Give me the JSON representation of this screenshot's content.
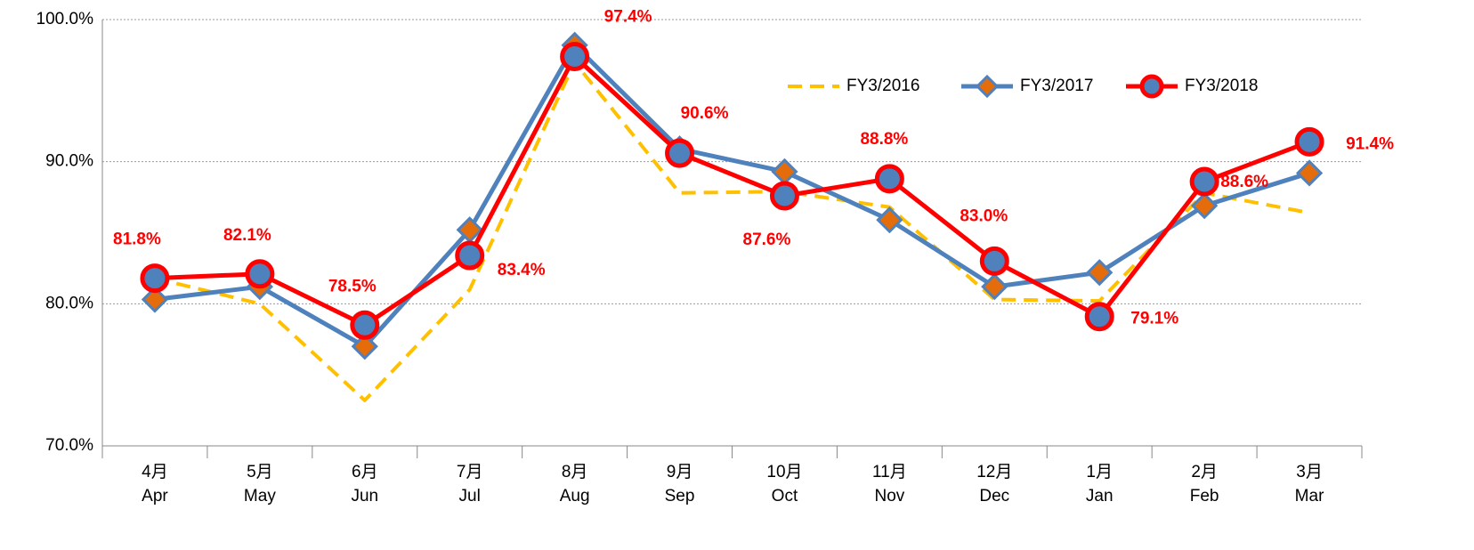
{
  "chart_data": {
    "type": "line",
    "categories": [
      [
        "4月",
        "Apr"
      ],
      [
        "5月",
        "May"
      ],
      [
        "6月",
        "Jun"
      ],
      [
        "7月",
        "Jul"
      ],
      [
        "8月",
        "Aug"
      ],
      [
        "9月",
        "Sep"
      ],
      [
        "10月",
        "Oct"
      ],
      [
        "11月",
        "Nov"
      ],
      [
        "12月",
        "Dec"
      ],
      [
        "1月",
        "Jan"
      ],
      [
        "2月",
        "Feb"
      ],
      [
        "3月",
        "Mar"
      ]
    ],
    "series": [
      {
        "name": "FY3/2016",
        "color": "#FFC000",
        "style": "dashed",
        "values": [
          81.8,
          80.0,
          73.2,
          81.0,
          97.0,
          87.8,
          87.9,
          86.8,
          80.3,
          80.2,
          87.8,
          86.4
        ]
      },
      {
        "name": "FY3/2017",
        "color": "#4F81BD",
        "marker_fill": "#E46C0A",
        "marker": "diamond",
        "values": [
          80.3,
          81.2,
          77.0,
          85.2,
          98.2,
          90.9,
          89.3,
          85.9,
          81.2,
          82.2,
          86.9,
          89.2
        ]
      },
      {
        "name": "FY3/2018",
        "color": "#FF0000",
        "marker_fill": "#4F81BD",
        "marker": "circle",
        "values": [
          81.8,
          82.1,
          78.5,
          83.4,
          97.4,
          90.6,
          87.6,
          88.8,
          83.0,
          79.1,
          88.6,
          91.4
        ],
        "value_labels": [
          "81.8%",
          "82.1%",
          "78.5%",
          "83.4%",
          "97.4%",
          "90.6%",
          "87.6%",
          "88.8%",
          "83.0%",
          "79.1%",
          "88.6%",
          "91.4%"
        ]
      }
    ],
    "ylim": [
      70,
      100
    ],
    "yticks": [
      {
        "value": 70,
        "label": "70.0%"
      },
      {
        "value": 80,
        "label": "80.0%"
      },
      {
        "value": 90,
        "label": "90.0%"
      },
      {
        "value": 100,
        "label": "100.0%"
      }
    ],
    "grid": true,
    "legend": "top-right"
  }
}
